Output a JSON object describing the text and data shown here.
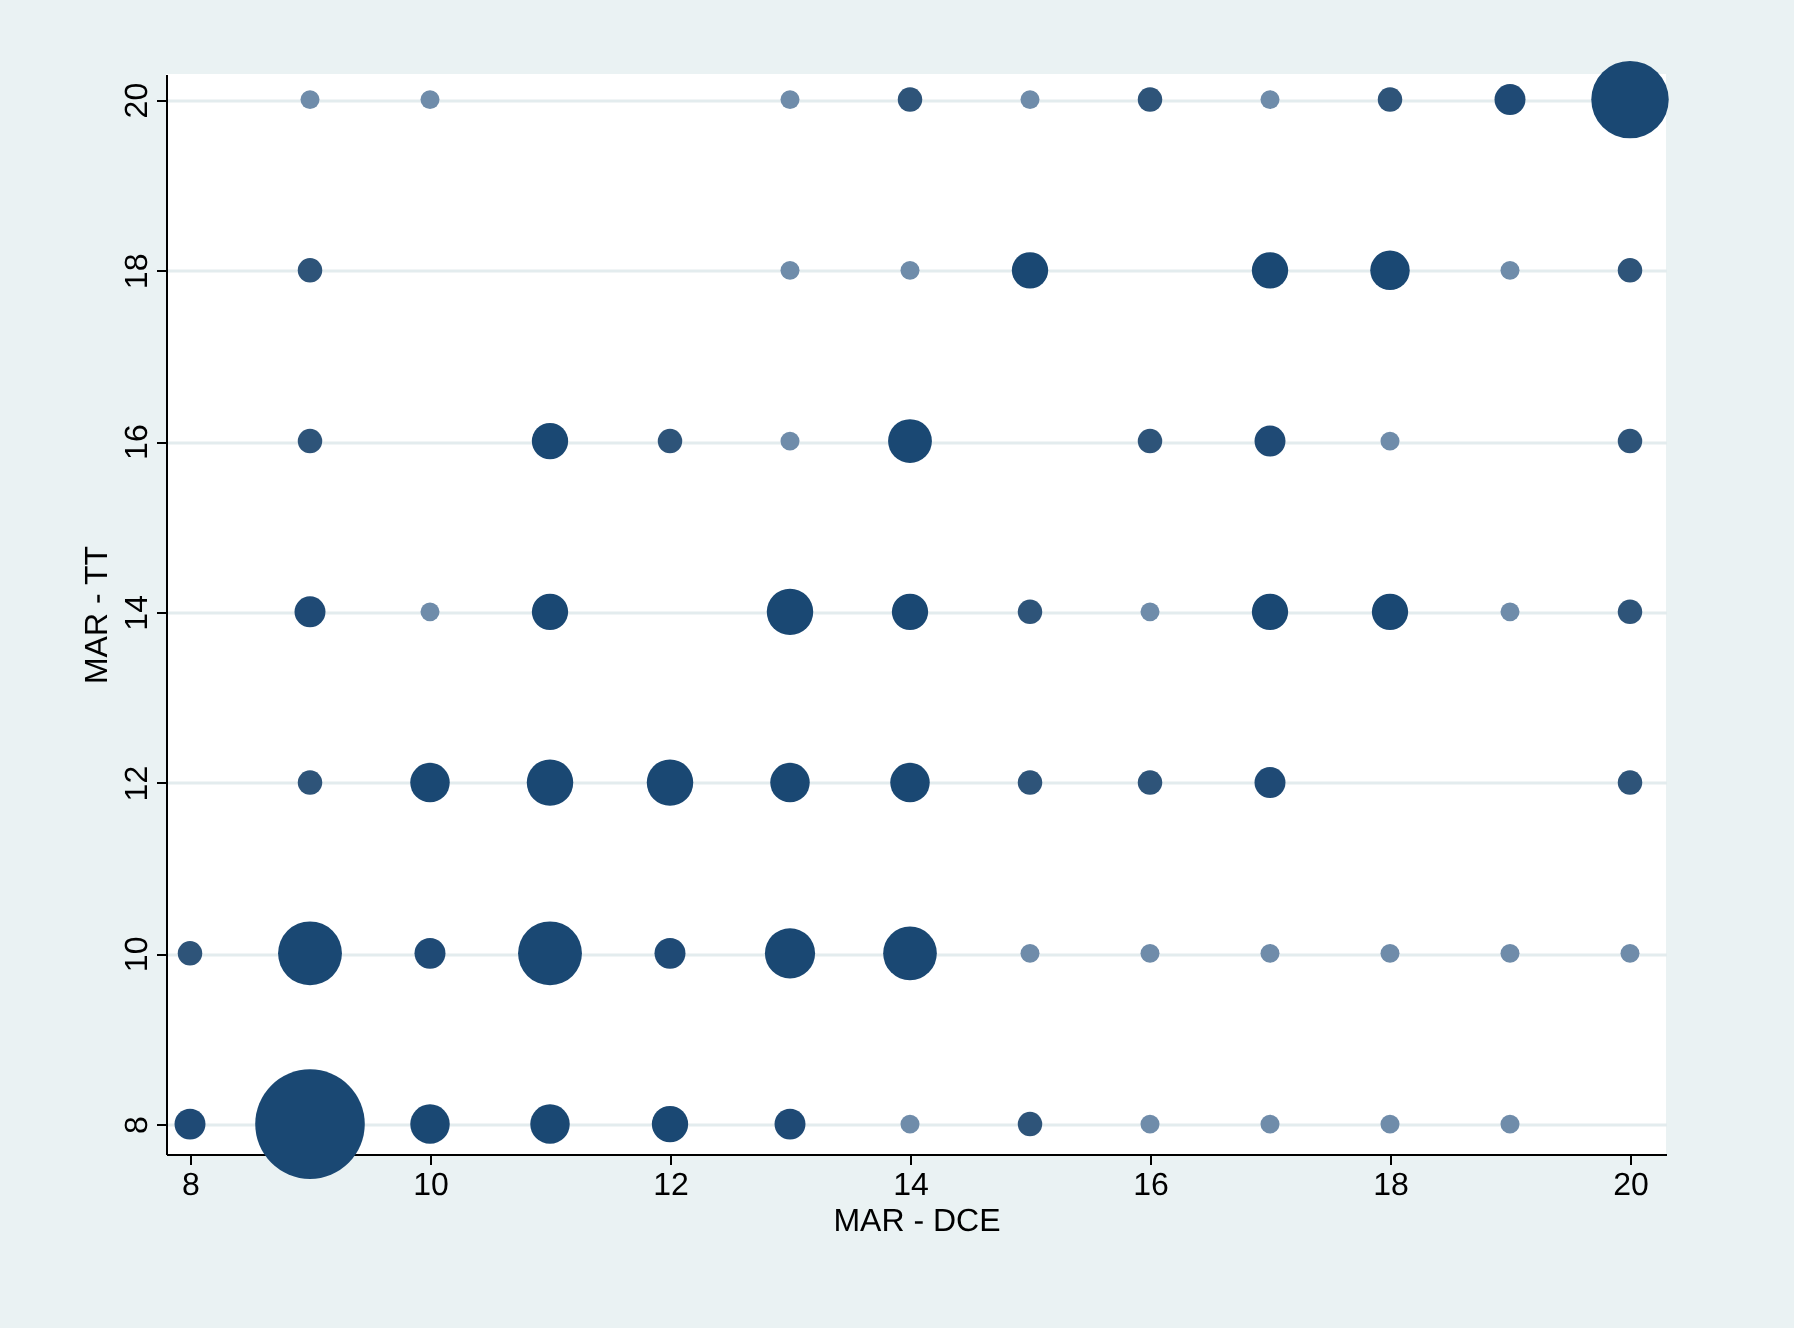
{
  "chart_data": {
    "type": "bubble",
    "xlabel": "MAR - DCE",
    "ylabel": "MAR - TT",
    "x": [
      9,
      10,
      13,
      14,
      15,
      16,
      17,
      18,
      19,
      20,
      9,
      13,
      14,
      15,
      17,
      18,
      19,
      20,
      9,
      11,
      12,
      13,
      14,
      16,
      17,
      18,
      20,
      9,
      10,
      11,
      13,
      14,
      15,
      16,
      17,
      18,
      19,
      20,
      9,
      10,
      11,
      12,
      13,
      14,
      15,
      16,
      17,
      20,
      8,
      9,
      10,
      11,
      12,
      13,
      14,
      15,
      16,
      17,
      18,
      19,
      20,
      8,
      9,
      10,
      11,
      12,
      13,
      14,
      15,
      16,
      17,
      18,
      19
    ],
    "values": [
      20,
      20,
      20,
      20,
      20,
      20,
      20,
      20,
      20,
      20,
      18,
      18,
      18,
      18,
      18,
      18,
      18,
      18,
      16,
      16,
      16,
      16,
      16,
      16,
      16,
      16,
      16,
      14,
      14,
      14,
      14,
      14,
      14,
      14,
      14,
      14,
      14,
      14,
      12,
      12,
      12,
      12,
      12,
      12,
      12,
      12,
      12,
      12,
      10,
      10,
      10,
      10,
      10,
      10,
      10,
      10,
      10,
      10,
      10,
      10,
      10,
      8,
      8,
      8,
      8,
      8,
      8,
      8,
      8,
      8,
      8,
      8,
      8
    ],
    "sizes": [
      0.03,
      0.03,
      0.03,
      0.05,
      0.03,
      0.05,
      0.03,
      0.05,
      0.08,
      0.5,
      0.05,
      0.03,
      0.03,
      0.11,
      0.11,
      0.13,
      0.03,
      0.05,
      0.05,
      0.11,
      0.05,
      0.03,
      0.16,
      0.05,
      0.08,
      0.03,
      0.05,
      0.08,
      0.03,
      0.11,
      0.18,
      0.11,
      0.05,
      0.03,
      0.11,
      0.11,
      0.03,
      0.05,
      0.05,
      0.13,
      0.18,
      0.18,
      0.13,
      0.13,
      0.05,
      0.05,
      0.08,
      0.05,
      0.05,
      0.34,
      0.08,
      0.34,
      0.08,
      0.21,
      0.24,
      0.03,
      0.03,
      0.03,
      0.03,
      0.03,
      0.03,
      0.08,
      1,
      0.13,
      0.13,
      0.11,
      0.08,
      0.03,
      0.05,
      0.03,
      0.03,
      0.03,
      0.03
    ],
    "colors": [
      "#6f8caa",
      "#6f8caa",
      "#6f8caa",
      "#2e5479",
      "#6f8caa",
      "#2e5479",
      "#6f8caa",
      "#2e5479",
      "#1f4a75",
      "#1a4873",
      "#2e5479",
      "#6f8caa",
      "#6f8caa",
      "#1a4873",
      "#1a4873",
      "#1a4873",
      "#6f8caa",
      "#2e5479",
      "#2e5479",
      "#1a4873",
      "#2e5479",
      "#6f8caa",
      "#1a4873",
      "#2e5479",
      "#1f4a75",
      "#6f8caa",
      "#2e5479",
      "#1f4a75",
      "#6f8caa",
      "#1a4873",
      "#1a4873",
      "#1a4873",
      "#2e5479",
      "#6f8caa",
      "#1a4873",
      "#1a4873",
      "#6f8caa",
      "#2e5479",
      "#2e5479",
      "#1a4873",
      "#1a4873",
      "#1a4873",
      "#1a4873",
      "#1a4873",
      "#2e5479",
      "#2e5479",
      "#1f4a75",
      "#2e5479",
      "#2e5479",
      "#1a4873",
      "#1f4a75",
      "#1a4873",
      "#1f4a75",
      "#1a4873",
      "#1a4873",
      "#6f8caa",
      "#6f8caa",
      "#6f8caa",
      "#6f8caa",
      "#6f8caa",
      "#6f8caa",
      "#1f4a75",
      "#1a4873",
      "#1a4873",
      "#1a4873",
      "#1a4873",
      "#1f4a75",
      "#6f8caa",
      "#2e5479",
      "#6f8caa",
      "#6f8caa",
      "#6f8caa",
      "#6f8caa"
    ],
    "xlim": [
      7.8,
      20.3
    ],
    "ylim": [
      7.65,
      20.3
    ],
    "xticks": [
      8,
      10,
      12,
      14,
      16,
      18,
      20
    ],
    "yticks": [
      8,
      10,
      12,
      14,
      16,
      18,
      20
    ],
    "grid": "y",
    "legend": false
  }
}
